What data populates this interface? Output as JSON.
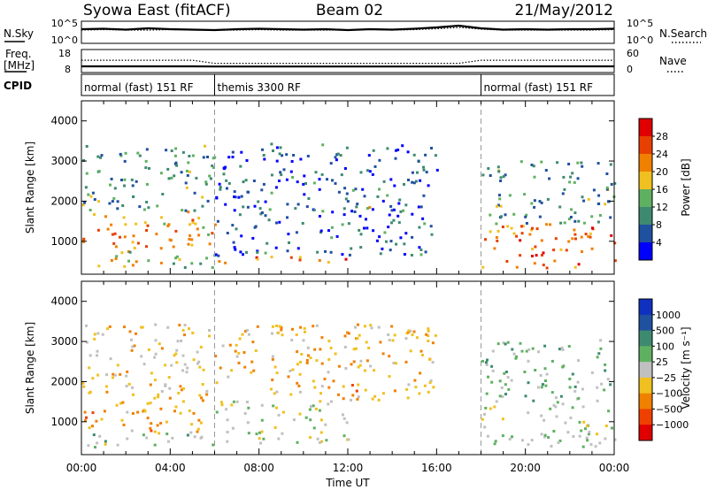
{
  "header": {
    "station": "Syowa East (fitACF)",
    "beam": "Beam 02",
    "date": "21/May/2012"
  },
  "chart_data": [
    {
      "type": "line",
      "panel": "noise",
      "left_label": "N.Sky",
      "left_ticks": [
        "10^5",
        "10^0"
      ],
      "right_label": "N.Search",
      "right_ticks": [
        "10^5",
        "10^0"
      ],
      "series": [
        {
          "name": "N.Sky",
          "style": "solid",
          "values": [
            3.2,
            3.3,
            3.1,
            3.4,
            3.2,
            3.1,
            3.0,
            3.2,
            3.3,
            3.2,
            3.1,
            3.2,
            3.0,
            3.2,
            3.1,
            3.3,
            3.6,
            4.0,
            3.4,
            3.1,
            3.2,
            3.1,
            3.2,
            3.2,
            3.3
          ]
        },
        {
          "name": "N.Search",
          "style": "dotted",
          "values": [
            3.0,
            3.1,
            3.0,
            3.0,
            3.1,
            3.0,
            3.0,
            3.0,
            3.1,
            3.0,
            3.0,
            3.0,
            3.0,
            3.1,
            3.0,
            3.1,
            3.3,
            3.6,
            3.2,
            3.0,
            3.0,
            3.0,
            3.0,
            3.0,
            3.1
          ]
        }
      ]
    },
    {
      "type": "line",
      "panel": "frequency",
      "left_label": "Freq.",
      "left_unit": "[MHz]",
      "left_ticks": [
        "18",
        "8"
      ],
      "right_label": "Nave",
      "right_ticks": [
        "60",
        "0"
      ],
      "series": [
        {
          "name": "Freq",
          "style": "solid",
          "values": [
            10.7,
            10.7,
            10.7,
            10.7,
            10.7,
            10.7,
            10.6,
            10.6,
            10.6,
            10.6,
            10.6,
            10.6,
            10.6,
            10.6,
            10.6,
            10.6,
            10.6,
            10.6,
            10.7,
            10.7,
            10.7,
            10.7,
            10.7,
            10.7,
            10.7
          ]
        },
        {
          "name": "Nave",
          "style": "dotted",
          "values": [
            32,
            32,
            32,
            32,
            32,
            32,
            24,
            24,
            24,
            24,
            24,
            24,
            24,
            24,
            24,
            24,
            24,
            24,
            32,
            32,
            32,
            32,
            32,
            32,
            32
          ]
        }
      ]
    },
    {
      "type": "table",
      "panel": "cpid",
      "label": "CPID",
      "segments": [
        {
          "start_hour": 0,
          "end_hour": 6,
          "text": "normal (fast) 151 RF"
        },
        {
          "start_hour": 6,
          "end_hour": 18,
          "text": "themis 3300 RF"
        },
        {
          "start_hour": 18,
          "end_hour": 24,
          "text": "normal (fast) 151 RF"
        }
      ]
    },
    {
      "type": "heatmap",
      "panel": "power",
      "ylabel": "Slant Range [km]",
      "ylim": [
        180,
        4500
      ],
      "yticks": [
        1000,
        2000,
        3000,
        4000
      ],
      "colorbar": {
        "label": "Power [dB]",
        "ticks": [
          "4",
          "8",
          "12",
          "16",
          "20",
          "24",
          "28"
        ],
        "range": [
          0,
          30
        ]
      },
      "x_hours": [
        0.5,
        1.5,
        2.5,
        3.5,
        4.5,
        5.5,
        6.5,
        7.5,
        8.5,
        9.5,
        10.5,
        11.5,
        12.5,
        13.5,
        14.5,
        15.5,
        16.5,
        17.5,
        18.5,
        19.5,
        20.5,
        21.5,
        22.5,
        23.5
      ],
      "echo_bands": [
        {
          "from_hour": 0,
          "to_hour": 6,
          "range_km": [
            700,
            1700
          ],
          "level": 20
        },
        {
          "from_hour": 0,
          "to_hour": 6,
          "range_km": [
            300,
            700
          ],
          "level": 14
        },
        {
          "from_hour": 0,
          "to_hour": 6,
          "range_km": [
            1700,
            3400
          ],
          "level": 10
        },
        {
          "from_hour": 6,
          "to_hour": 12,
          "range_km": [
            400,
            600
          ],
          "level": 22
        },
        {
          "from_hour": 6,
          "to_hour": 16,
          "range_km": [
            600,
            3400
          ],
          "level": 6
        },
        {
          "from_hour": 12,
          "to_hour": 13,
          "range_km": [
            1700,
            1900
          ],
          "level": 16
        },
        {
          "from_hour": 18,
          "to_hour": 24,
          "range_km": [
            300,
            1400
          ],
          "level": 22
        },
        {
          "from_hour": 18,
          "to_hour": 24,
          "range_km": [
            1400,
            3000
          ],
          "level": 10
        }
      ]
    },
    {
      "type": "heatmap",
      "panel": "velocity",
      "xlabel": "Time UT",
      "ylabel": "Slant Range [km]",
      "ylim": [
        180,
        4500
      ],
      "yticks": [
        1000,
        2000,
        3000,
        4000
      ],
      "xticks": [
        "00:00",
        "04:00",
        "08:00",
        "12:00",
        "16:00",
        "20:00",
        "00:00"
      ],
      "colorbar": {
        "label": "Velocity [m s⁻¹]",
        "ticks": [
          "1000",
          "500",
          "100",
          "25",
          "−25",
          "−100",
          "−500",
          "−1000"
        ],
        "range": [
          -1200,
          1200
        ]
      },
      "echo_bands": [
        {
          "from_hour": 0,
          "to_hour": 6,
          "range_km": [
            700,
            1700
          ],
          "level": -400
        },
        {
          "from_hour": 0,
          "to_hour": 6,
          "range_km": [
            300,
            700
          ],
          "level": 150
        },
        {
          "from_hour": 0,
          "to_hour": 6,
          "range_km": [
            1700,
            3400
          ],
          "level": -200
        },
        {
          "from_hour": 6,
          "to_hour": 12,
          "range_km": [
            400,
            1500
          ],
          "level": 0
        },
        {
          "from_hour": 6,
          "to_hour": 16,
          "range_km": [
            1500,
            3400
          ],
          "level": -300
        },
        {
          "from_hour": 12,
          "to_hour": 13,
          "range_km": [
            1700,
            1900
          ],
          "level": -900
        },
        {
          "from_hour": 18,
          "to_hour": 24,
          "range_km": [
            300,
            1400
          ],
          "level": 100
        },
        {
          "from_hour": 18,
          "to_hour": 24,
          "range_km": [
            1400,
            3000
          ],
          "level": 200
        }
      ]
    }
  ],
  "colors": {
    "power_scale": [
      "#0000ff",
      "#2050a0",
      "#3e8a70",
      "#5fb060",
      "#f0c020",
      "#f08000",
      "#e84000",
      "#e00000"
    ],
    "velocity_scale": [
      "#e00000",
      "#f04000",
      "#f08000",
      "#f0c020",
      "#c0c0c0",
      "#5fb060",
      "#3e8a70",
      "#2050a0",
      "#1030c0"
    ]
  }
}
